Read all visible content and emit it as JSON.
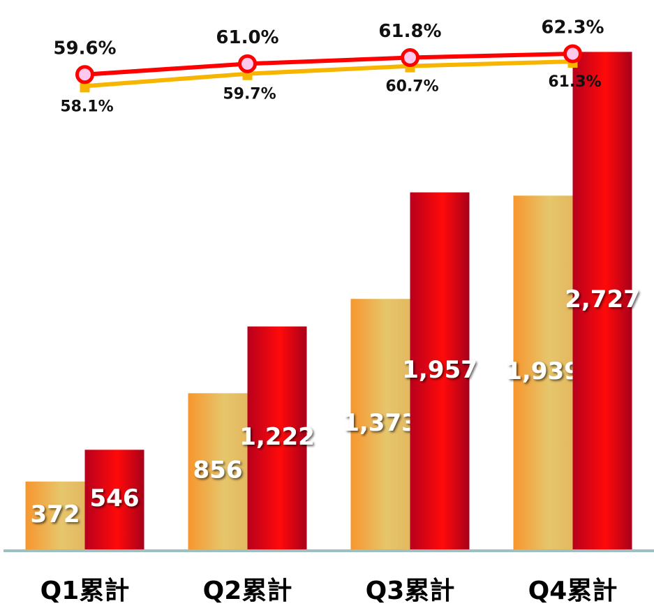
{
  "chart_data": {
    "type": "bar",
    "categories": [
      "Q1累計",
      "Q2累計",
      "Q3累計",
      "Q4累計"
    ],
    "series": [
      {
        "type": "bar",
        "color": "#f5a43a",
        "values": [
          372,
          856,
          1373,
          1939
        ],
        "value_labels": [
          "372",
          "856",
          "1,373",
          "1,939"
        ]
      },
      {
        "type": "bar",
        "color": "#ee0010",
        "values": [
          546,
          1222,
          1957,
          2727
        ],
        "value_labels": [
          "546",
          "1,222",
          "1,957",
          "2,727"
        ]
      },
      {
        "type": "line",
        "axis": "y2",
        "color": "#f7b500",
        "values": [
          58.1,
          59.7,
          60.7,
          61.3
        ],
        "value_labels": [
          "58.1%",
          "59.7%",
          "60.7%",
          "61.3%"
        ]
      },
      {
        "type": "line",
        "axis": "y2",
        "color": "#ff0000",
        "values": [
          59.6,
          61.0,
          61.8,
          62.3
        ],
        "value_labels": [
          "59.6%",
          "61.0%",
          "61.8%",
          "62.3%"
        ]
      }
    ],
    "ylim": [
      0,
      3000
    ],
    "y2lim": [
      -2,
      69
    ]
  }
}
